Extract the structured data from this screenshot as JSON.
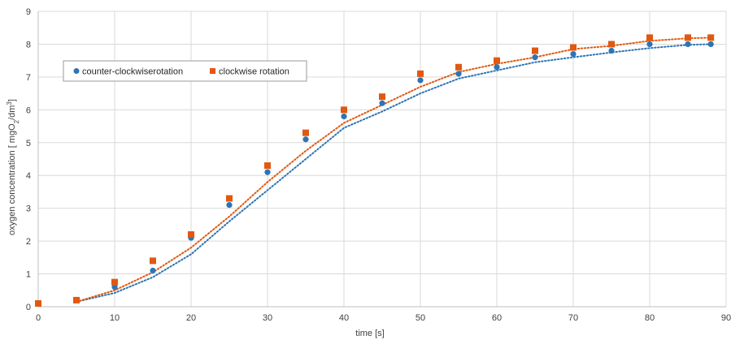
{
  "chart_data": {
    "type": "scatter",
    "xlabel": "time [s]",
    "ylabel_parts": {
      "main": "oxygen concentration [ mgO",
      "sub1": "2",
      "mid": "/dm",
      "sup": "3",
      "end": "]"
    },
    "xlim": [
      0,
      90
    ],
    "ylim": [
      0,
      9
    ],
    "x_ticks": [
      0,
      10,
      20,
      30,
      40,
      50,
      60,
      70,
      80,
      90
    ],
    "y_ticks": [
      0,
      1,
      2,
      3,
      4,
      5,
      6,
      7,
      8,
      9
    ],
    "grid": true,
    "legend_position": "top-left",
    "series": [
      {
        "name": "counter-clockwiserotation",
        "marker": "circle",
        "color": "#2e74b5",
        "x": [
          0,
          5,
          10,
          15,
          20,
          25,
          30,
          35,
          40,
          45,
          50,
          55,
          60,
          65,
          70,
          75,
          80,
          85,
          88
        ],
        "y": [
          0.1,
          0.2,
          0.6,
          1.1,
          2.1,
          3.1,
          4.1,
          5.1,
          5.8,
          6.2,
          6.9,
          7.1,
          7.3,
          7.6,
          7.7,
          7.8,
          8.0,
          8.0,
          8.0
        ],
        "trend_x": [
          5,
          10,
          15,
          20,
          25,
          30,
          35,
          40,
          45,
          50,
          55,
          60,
          65,
          70,
          75,
          80,
          85,
          88
        ],
        "trend_y": [
          0.15,
          0.42,
          0.9,
          1.6,
          2.6,
          3.55,
          4.5,
          5.45,
          5.95,
          6.5,
          6.95,
          7.2,
          7.45,
          7.6,
          7.75,
          7.88,
          7.98,
          8.0
        ]
      },
      {
        "name": "clockwise rotation",
        "marker": "square",
        "color": "#e2580f",
        "x": [
          0,
          5,
          10,
          15,
          20,
          25,
          30,
          35,
          40,
          45,
          50,
          55,
          60,
          65,
          70,
          75,
          80,
          85,
          88
        ],
        "y": [
          0.1,
          0.2,
          0.75,
          1.4,
          2.2,
          3.3,
          4.3,
          5.3,
          6.0,
          6.4,
          7.1,
          7.3,
          7.5,
          7.8,
          7.9,
          8.0,
          8.2,
          8.2,
          8.2
        ],
        "trend_x": [
          5,
          10,
          15,
          20,
          25,
          30,
          35,
          40,
          45,
          50,
          55,
          60,
          65,
          70,
          75,
          80,
          85,
          88
        ],
        "trend_y": [
          0.15,
          0.5,
          1.05,
          1.8,
          2.75,
          3.8,
          4.75,
          5.6,
          6.15,
          6.7,
          7.15,
          7.4,
          7.6,
          7.85,
          7.95,
          8.1,
          8.18,
          8.2
        ]
      }
    ]
  }
}
